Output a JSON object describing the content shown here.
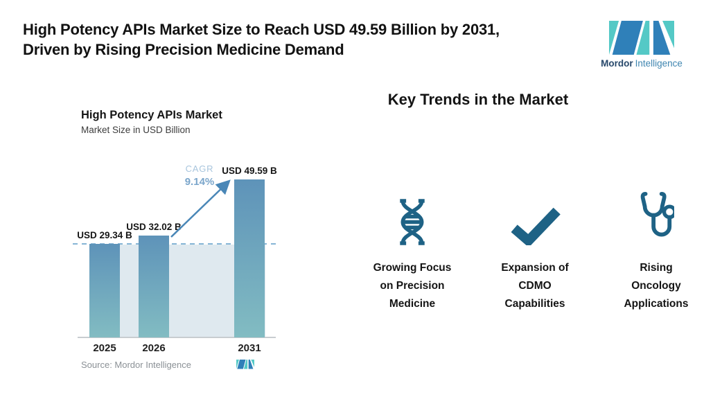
{
  "header": {
    "title_line1": "High Potency APIs Market Size to Reach USD 49.59 Billion by 2031,",
    "title_line2": "Driven by Rising Precision Medicine Demand",
    "brand": {
      "bold": "Mordor",
      "regular": "Intelligence"
    }
  },
  "chart_data": {
    "type": "bar",
    "title": "High Potency APIs Market",
    "subtitle": "Market Size in USD Billion",
    "categories": [
      "2025",
      "2026",
      "2031"
    ],
    "values": [
      29.34,
      32.02,
      49.59
    ],
    "value_labels": [
      "USD 29.34 B",
      "USD 32.02 B",
      "USD 49.59 B"
    ],
    "cagr": {
      "label": "CAGR",
      "value": "9.14%"
    },
    "ylim": [
      0,
      50
    ],
    "grid": false,
    "legend": false,
    "annotations": "dashed reference line at the 2025 value; growth arrow from 2026 bar to 2031 bar",
    "source": "Source: Mordor Intelligence"
  },
  "trends": {
    "heading": "Key Trends in the Market",
    "items": [
      {
        "icon": "dna-icon",
        "lines": [
          "Growing Focus",
          "on Precision",
          "Medicine"
        ]
      },
      {
        "icon": "checkmark-icon",
        "lines": [
          "Expansion of",
          "CDMO",
          "Capabilities"
        ]
      },
      {
        "icon": "stethoscope-icon",
        "lines": [
          "Rising",
          "Oncology",
          "Applications"
        ]
      }
    ]
  },
  "colors": {
    "icon_accent": "#1e6285",
    "logo_teal": "#54c9c6",
    "logo_blue": "#2f80b9",
    "logo_text_dark": "#27486b",
    "logo_text_light": "#3e85b0",
    "bar_top": "#5e93b9",
    "bar_bottom": "#82bcc2",
    "band_fill": "#dfe9ef",
    "dashed_line": "#85b5d5",
    "arrow": "#4a87b7",
    "cagr_label": "#a8c5dd",
    "cagr_value": "#7ba6cb",
    "axis_line": "#c8cdd0",
    "source_text": "#8b9196",
    "title_text": "#121212"
  }
}
